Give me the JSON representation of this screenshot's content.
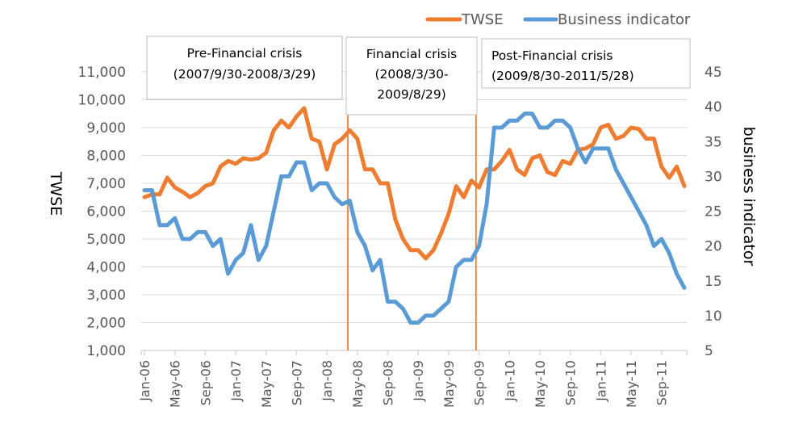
{
  "chart_data": {
    "type": "line",
    "title": "",
    "xlabel": "",
    "ylabel": "TWSE",
    "y2label": "business indicator",
    "ylim": [
      1000,
      11000
    ],
    "y2lim": [
      5,
      45
    ],
    "yticks": [
      "1,000",
      "2,000",
      "3,000",
      "4,000",
      "5,000",
      "6,000",
      "7,000",
      "8,000",
      "9,000",
      "10,000",
      "11,000"
    ],
    "y2ticks": [
      "5",
      "10",
      "15",
      "20",
      "25",
      "30",
      "35",
      "40",
      "45"
    ],
    "xtick_labels": [
      "Jan-06",
      "May-06",
      "Sep-06",
      "Jan-07",
      "May-07",
      "Sep-07",
      "Jan-08",
      "May-08",
      "Sep-08",
      "Jan-09",
      "May-09",
      "Sep-09",
      "Jan-10",
      "May-10",
      "Sep-10",
      "Jan-11",
      "May-11",
      "Sep-11"
    ],
    "x_start": "Jan-06",
    "x_count_months": 72,
    "grid": true,
    "legend_position": "top-right",
    "series": [
      {
        "name": "TWSE",
        "axis": "left",
        "color": "#ED7D31",
        "values": [
          6500,
          6600,
          6600,
          7200,
          6850,
          6700,
          6500,
          6650,
          6900,
          7000,
          7600,
          7800,
          7700,
          7900,
          7850,
          7900,
          8100,
          8900,
          9250,
          9000,
          9400,
          9700,
          8600,
          8500,
          7500,
          8400,
          8600,
          8900,
          8600,
          7500,
          7500,
          7000,
          7000,
          5700,
          5000,
          4600,
          4600,
          4300,
          4600,
          5200,
          5900,
          6900,
          6500,
          7100,
          6850,
          7500,
          7500,
          7800,
          8200,
          7500,
          7300,
          7900,
          8000,
          7400,
          7300,
          7800,
          7700,
          8200,
          8250,
          8400,
          9000,
          9100,
          8600,
          8700,
          9000,
          8950,
          8600,
          8600,
          7600,
          7200,
          7600,
          6900
        ]
      },
      {
        "name": "Business indicator",
        "axis": "right",
        "color": "#5B9BD5",
        "values": [
          28,
          28,
          23,
          23,
          24,
          21,
          21,
          22,
          22,
          20,
          21,
          16,
          18,
          19,
          23,
          18,
          20,
          25,
          30,
          30,
          32,
          32,
          28,
          29,
          29,
          27,
          26,
          26.5,
          22,
          20,
          16.5,
          18,
          12,
          12,
          11,
          9,
          9,
          10,
          10,
          11,
          12,
          17,
          18,
          18,
          20,
          26,
          37,
          37,
          38,
          38,
          39,
          39,
          37,
          37,
          38,
          38,
          37,
          34,
          32,
          34,
          34,
          34,
          31,
          29,
          27,
          25,
          23,
          20,
          21,
          19,
          16,
          14
        ]
      }
    ],
    "annotations": [
      {
        "label_line1": "Pre-Financial crisis",
        "label_line2": "(2007/9/30-2008/3/29)"
      },
      {
        "label_line1": "Financial crisis",
        "label_line2": "(2008/3/30-",
        "label_line3": "2009/8/29)",
        "marker_month_index": 26.75
      },
      {
        "label_line1": "Post-Financial crisis",
        "label_line2": "(2009/8/30-2011/5/28)",
        "marker_month_index": 43.6
      }
    ],
    "marker_color": "#ED7D31"
  }
}
